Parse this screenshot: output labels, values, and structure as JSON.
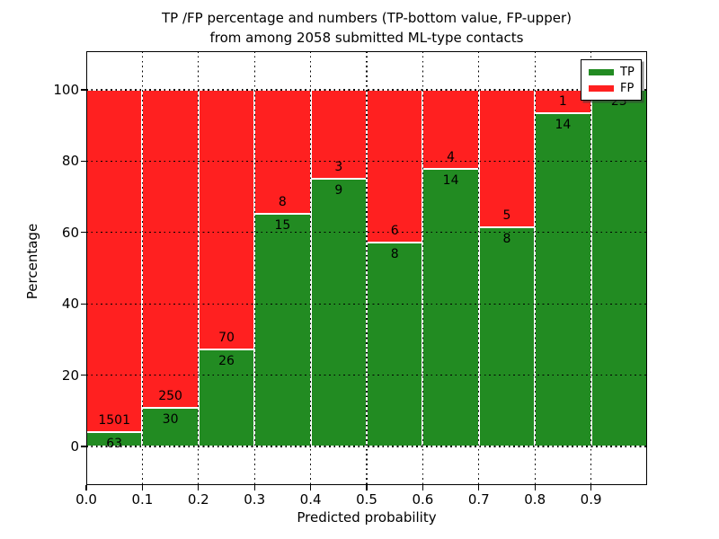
{
  "chart_data": {
    "type": "bar",
    "stacked": true,
    "title": "TP /FP percentage and numbers (TP-bottom value, FP-upper)\nfrom among 2058 submitted ML-type contacts",
    "title_lines": [
      "TP /FP percentage and numbers (TP-bottom value, FP-upper)",
      "from among 2058 submitted ML-type contacts"
    ],
    "xlabel": "Predicted probability",
    "ylabel": "Percentage",
    "total_contacts": 2058,
    "categories": [
      "0.0",
      "0.1",
      "0.2",
      "0.3",
      "0.4",
      "0.5",
      "0.6",
      "0.7",
      "0.8",
      "0.9"
    ],
    "bin_width": 0.1,
    "series": [
      {
        "name": "TP",
        "color": "#228B22",
        "counts": [
          63,
          30,
          26,
          15,
          9,
          8,
          14,
          8,
          14,
          23
        ]
      },
      {
        "name": "FP",
        "color": "#FF2020",
        "counts": [
          1501,
          250,
          70,
          8,
          3,
          6,
          4,
          5,
          1,
          0
        ]
      }
    ],
    "tp_percent": [
      4.03,
      10.71,
      27.08,
      65.22,
      75.0,
      57.14,
      77.78,
      61.54,
      93.33,
      100.0
    ],
    "x_tick_labels": [
      "0.0",
      "0.1",
      "0.2",
      "0.3",
      "0.4",
      "0.5",
      "0.6",
      "0.7",
      "0.8",
      "0.9"
    ],
    "y_tick_values": [
      0,
      20,
      40,
      60,
      80,
      100
    ],
    "y_tick_labels": [
      "0",
      "20",
      "40",
      "60",
      "80",
      "100"
    ],
    "xlim": [
      0.0,
      1.0
    ],
    "ylim": [
      -10.83,
      110.83
    ],
    "grid": "dotted",
    "legend": {
      "position": "upper-right",
      "entries": [
        {
          "label": "TP",
          "color": "#228B22"
        },
        {
          "label": "FP",
          "color": "#FF2020"
        }
      ]
    }
  }
}
